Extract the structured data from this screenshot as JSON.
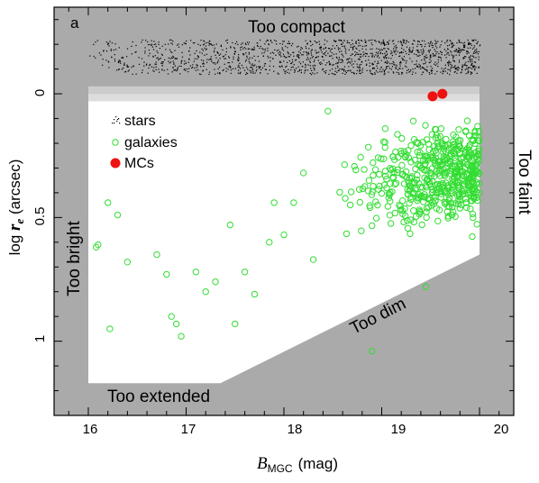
{
  "panel_label": "a",
  "chart_data": {
    "type": "scatter",
    "xlabel_main": "B",
    "xlabel_sub": "MGC",
    "xlabel_unit": "(mag)",
    "ylabel_main": "log ",
    "ylabel_r": "r",
    "ylabel_sub": "e",
    "ylabel_unit": " (arcsec)",
    "xlim": [
      15.65,
      20.35
    ],
    "ylim": [
      -0.35,
      1.3
    ],
    "y_inverted": true,
    "x_ticks": [
      16,
      17,
      18,
      19,
      20
    ],
    "x_tick_labels": [
      "16",
      "17",
      "18",
      "19",
      "20"
    ],
    "y_ticks": [
      0,
      0.5,
      1
    ],
    "y_tick_labels": [
      "0",
      "0.5",
      "1"
    ],
    "legend": {
      "placement": "upper-left",
      "entries": [
        {
          "label": "stars",
          "marker": "dots",
          "color": "#000000"
        },
        {
          "label": "galaxies",
          "marker": "open-circle",
          "color": "#33dd33"
        },
        {
          "label": "MCs",
          "marker": "filled-circle",
          "color": "#ee1111"
        }
      ]
    },
    "region_labels": {
      "compact": "Too compact",
      "bright": "Too bright",
      "faint": "Too faint",
      "dim": "Too dim",
      "extended": "Too extended"
    },
    "selection_window": {
      "polygon": [
        [
          16.0,
          0.03
        ],
        [
          20.0,
          0.03
        ],
        [
          20.0,
          0.65
        ],
        [
          17.35,
          1.17
        ],
        [
          16.0,
          1.17
        ]
      ]
    },
    "colors": {
      "excluded": "#aaaaaa",
      "boundary_band_dark": "#cccccc",
      "boundary_band_light": "#dddddd",
      "allowed": "#ffffff",
      "galaxies": "#33dd33",
      "mcs": "#ee1111",
      "stars": "#000000"
    },
    "stars_region": {
      "x_range": [
        16.0,
        20.0
      ],
      "y_range": [
        -0.22,
        -0.08
      ],
      "count": 1500
    },
    "galaxy_distribution": {
      "count": 560,
      "x_range": [
        16.05,
        20.0
      ],
      "y_range": [
        0.03,
        1.1
      ]
    },
    "series": [
      {
        "name": "MCs",
        "x": [
          19.52,
          19.62
        ],
        "y": [
          0.01,
          0.0
        ]
      },
      {
        "name": "galaxies",
        "x": [
          16.08,
          16.1,
          16.22,
          16.3,
          16.2,
          16.4,
          16.7,
          16.8,
          16.85,
          16.95,
          16.9,
          17.1,
          17.3,
          17.2,
          17.45,
          17.5,
          17.6,
          17.7,
          17.85,
          17.9,
          18.0,
          18.1,
          18.2,
          18.3,
          18.45,
          18.9,
          19.45
        ],
        "y": [
          0.62,
          0.61,
          0.95,
          0.49,
          0.44,
          0.68,
          0.65,
          0.73,
          0.9,
          0.98,
          0.93,
          0.72,
          0.76,
          0.8,
          0.53,
          0.93,
          0.72,
          0.81,
          0.6,
          0.44,
          0.57,
          0.44,
          0.32,
          0.67,
          0.07,
          1.04,
          0.78
        ]
      }
    ]
  }
}
